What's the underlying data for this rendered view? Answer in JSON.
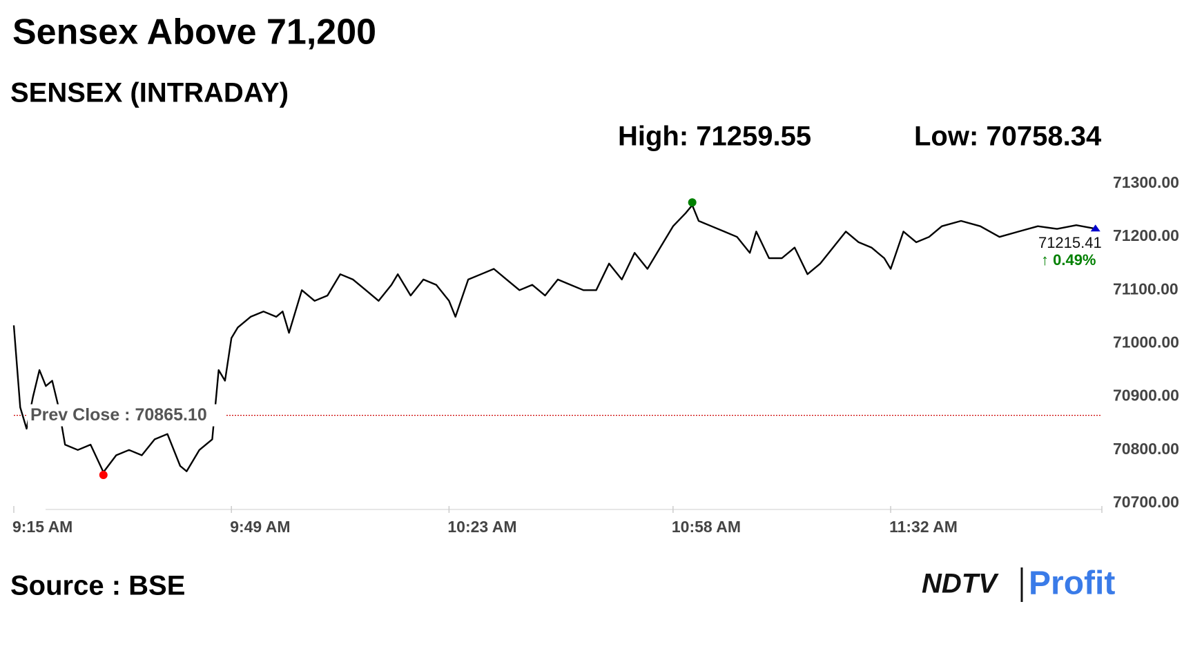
{
  "chart_data": {
    "type": "line",
    "title": "Sensex Above 71,200",
    "subtitle": "SENSEX (INTRADAY)",
    "high_text": "High: 71259.55",
    "low_text": "Low: 70758.34",
    "source": "Source : BSE",
    "logo": [
      "NDTV",
      "Profit"
    ],
    "change_label": "↑ 0.49%",
    "prev_close": {
      "value": 70865.1,
      "label": "Prev Close : 70865.10"
    },
    "x": [
      "9:15 AM",
      "9:16 AM",
      "9:17 AM",
      "9:18 AM",
      "9:19 AM",
      "9:20 AM",
      "9:21 AM",
      "9:22 AM",
      "9:23 AM",
      "9:25 AM",
      "9:27 AM",
      "9:29 AM",
      "9:31 AM",
      "9:33 AM",
      "9:35 AM",
      "9:37 AM",
      "9:39 AM",
      "9:41 AM",
      "9:42 AM",
      "9:44 AM",
      "9:46 AM",
      "9:47 AM",
      "9:48 AM",
      "9:49 AM",
      "9:50 AM",
      "9:52 AM",
      "9:54 AM",
      "9:56 AM",
      "9:57 AM",
      "9:58 AM",
      "10:00 AM",
      "10:02 AM",
      "10:04 AM",
      "10:06 AM",
      "10:08 AM",
      "10:10 AM",
      "10:12 AM",
      "10:14 AM",
      "10:15 AM",
      "10:17 AM",
      "10:19 AM",
      "10:21 AM",
      "10:23 AM",
      "10:24 AM",
      "10:26 AM",
      "10:28 AM",
      "10:30 AM",
      "10:32 AM",
      "10:34 AM",
      "10:36 AM",
      "10:38 AM",
      "10:40 AM",
      "10:42 AM",
      "10:44 AM",
      "10:46 AM",
      "10:48 AM",
      "10:50 AM",
      "10:52 AM",
      "10:54 AM",
      "10:56 AM",
      "10:58 AM",
      "11:00 AM",
      "11:01 AM",
      "11:02 AM",
      "11:04 AM",
      "11:06 AM",
      "11:08 AM",
      "11:10 AM",
      "11:11 AM",
      "11:13 AM",
      "11:15 AM",
      "11:17 AM",
      "11:19 AM",
      "11:21 AM",
      "11:23 AM",
      "11:25 AM",
      "11:27 AM",
      "11:29 AM",
      "11:31 AM",
      "11:32 AM",
      "11:34 AM",
      "11:36 AM",
      "11:38 AM",
      "11:40 AM",
      "11:43 AM",
      "11:46 AM",
      "11:49 AM",
      "11:52 AM",
      "11:55 AM",
      "11:58 AM",
      "12:01 PM",
      "12:04 PM"
    ],
    "series": [
      {
        "name": "SENSEX",
        "color": "#000000",
        "values": [
          71034,
          70880,
          70840,
          70900,
          70950,
          70920,
          70930,
          70880,
          70810,
          70800,
          70810,
          70758.34,
          70790,
          70800,
          70790,
          70820,
          70830,
          70770,
          70760,
          70800,
          70820,
          70950,
          70930,
          71010,
          71030,
          71050,
          71060,
          71050,
          71060,
          71020,
          71100,
          71080,
          71090,
          71130,
          71120,
          71100,
          71080,
          71110,
          71130,
          71090,
          71120,
          71110,
          71080,
          71050,
          71120,
          71130,
          71140,
          71120,
          71100,
          71110,
          71090,
          71120,
          71110,
          71100,
          71100,
          71150,
          71120,
          71170,
          71140,
          71180,
          71220,
          71245,
          71259.55,
          71230,
          71220,
          71210,
          71200,
          71170,
          71210,
          71160,
          71160,
          71180,
          71130,
          71150,
          71180,
          71210,
          71190,
          71180,
          71160,
          71140,
          71210,
          71190,
          71200,
          71220,
          71230,
          71220,
          71200,
          71210,
          71220,
          71215,
          71222,
          71215.41
        ]
      }
    ],
    "high_color": "#008000",
    "low_color": "#ff0000",
    "last_color": "#0000cc",
    "change_color": "#008000",
    "prev_close_color": "#cc0000",
    "xlim": [
      "9:15 AM",
      "12:05 PM"
    ],
    "xticks": [
      "9:15 AM",
      "9:49 AM",
      "10:23 AM",
      "10:58 AM",
      "11:32 AM"
    ],
    "ylim": [
      70700,
      71300
    ],
    "yticks": [
      {
        "value": 70700,
        "label": "70700.00"
      },
      {
        "value": 70800,
        "label": "70800.00"
      },
      {
        "value": 70900,
        "label": "70900.00"
      },
      {
        "value": 71000,
        "label": "71000.00"
      },
      {
        "value": 71100,
        "label": "71100.00"
      },
      {
        "value": 71200,
        "label": "71200.00"
      },
      {
        "value": 71300,
        "label": "71300.00"
      }
    ]
  }
}
